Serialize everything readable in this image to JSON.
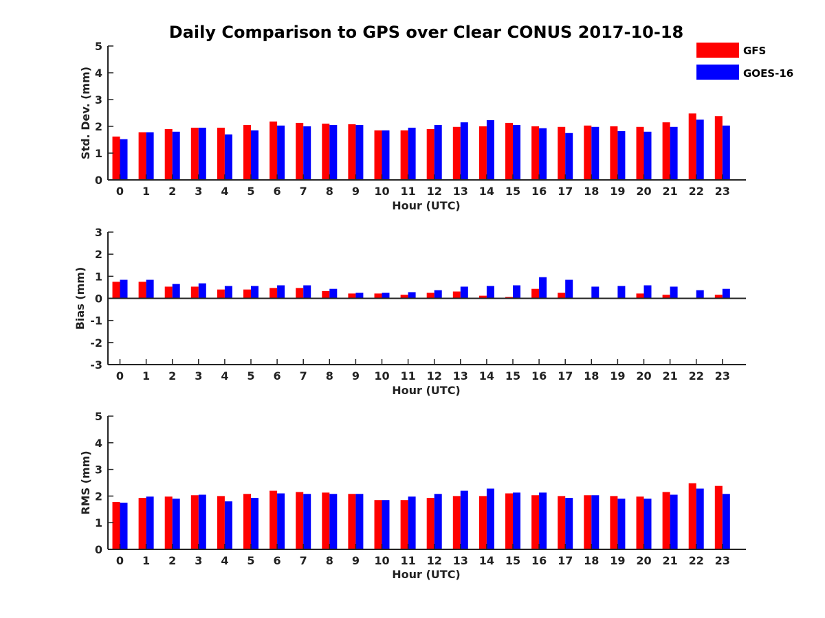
{
  "chart_data": {
    "type": "bar",
    "title": "Daily Comparison to GPS over Clear CONUS 2017-10-18",
    "legend": {
      "placement": "top-right",
      "entries": [
        {
          "name": "GFS",
          "color": "#ff0000"
        },
        {
          "name": "GOES-16",
          "color": "#0000ff"
        }
      ]
    },
    "categories": [
      "0",
      "1",
      "2",
      "3",
      "4",
      "5",
      "6",
      "7",
      "8",
      "9",
      "10",
      "11",
      "12",
      "13",
      "14",
      "15",
      "16",
      "17",
      "18",
      "19",
      "20",
      "21",
      "22",
      "23"
    ],
    "panels": [
      {
        "id": "std",
        "type": "bar",
        "xlabel": "Hour (UTC)",
        "ylabel": "Std. Dev. (mm)",
        "ylim": [
          0,
          5
        ],
        "yticks": [
          "0",
          "1",
          "2",
          "3",
          "4",
          "5"
        ],
        "series": [
          {
            "name": "GFS",
            "color": "#ff0000",
            "values": [
              1.62,
              1.78,
              1.9,
              1.95,
              1.95,
              2.05,
              2.18,
              2.13,
              2.1,
              2.08,
              1.85,
              1.85,
              1.9,
              1.98,
              2.0,
              2.13,
              2.0,
              1.98,
              2.03,
              2.0,
              1.98,
              2.15,
              2.48,
              2.38
            ]
          },
          {
            "name": "GOES-16",
            "color": "#0000ff",
            "values": [
              1.52,
              1.78,
              1.8,
              1.95,
              1.7,
              1.85,
              2.03,
              2.0,
              2.05,
              2.05,
              1.85,
              1.95,
              2.05,
              2.15,
              2.23,
              2.05,
              1.93,
              1.75,
              1.98,
              1.82,
              1.8,
              1.98,
              2.25,
              2.03
            ]
          }
        ]
      },
      {
        "id": "bias",
        "type": "bar",
        "xlabel": "Hour (UTC)",
        "ylabel": "Bias (mm)",
        "ylim": [
          -3,
          3
        ],
        "yticks": [
          "-3",
          "-2",
          "-1",
          "0",
          "1",
          "2",
          "3"
        ],
        "series": [
          {
            "name": "GFS",
            "color": "#ff0000",
            "values": [
              0.75,
              0.75,
              0.53,
              0.53,
              0.4,
              0.4,
              0.47,
              0.47,
              0.33,
              0.22,
              0.22,
              0.16,
              0.25,
              0.31,
              0.12,
              0.06,
              0.43,
              0.25,
              -0.03,
              0.02,
              0.22,
              0.16,
              0.0,
              0.16
            ]
          },
          {
            "name": "GOES-16",
            "color": "#0000ff",
            "values": [
              0.84,
              0.84,
              0.65,
              0.68,
              0.56,
              0.56,
              0.59,
              0.59,
              0.43,
              0.25,
              0.25,
              0.28,
              0.37,
              0.53,
              0.56,
              0.59,
              0.96,
              0.84,
              0.53,
              0.56,
              0.59,
              0.53,
              0.37,
              0.43
            ]
          }
        ]
      },
      {
        "id": "rms",
        "type": "bar",
        "xlabel": "Hour (UTC)",
        "ylabel": "RMS (mm)",
        "ylim": [
          0,
          5
        ],
        "yticks": [
          "0",
          "1",
          "2",
          "3",
          "4",
          "5"
        ],
        "series": [
          {
            "name": "GFS",
            "color": "#ff0000",
            "values": [
              1.78,
              1.93,
              1.98,
              2.03,
              2.0,
              2.08,
              2.2,
              2.15,
              2.13,
              2.08,
              1.85,
              1.85,
              1.93,
              2.0,
              2.0,
              2.1,
              2.03,
              2.0,
              2.03,
              2.0,
              1.98,
              2.15,
              2.48,
              2.38
            ]
          },
          {
            "name": "GOES-16",
            "color": "#0000ff",
            "values": [
              1.75,
              1.98,
              1.9,
              2.05,
              1.8,
              1.93,
              2.1,
              2.08,
              2.08,
              2.08,
              1.85,
              1.98,
              2.08,
              2.2,
              2.28,
              2.13,
              2.13,
              1.93,
              2.03,
              1.9,
              1.9,
              2.05,
              2.28,
              2.08
            ]
          }
        ]
      }
    ]
  }
}
